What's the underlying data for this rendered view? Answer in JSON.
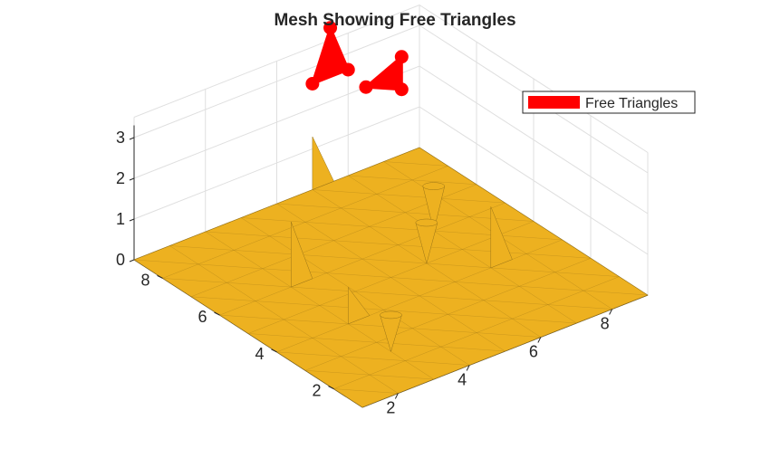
{
  "chart_data": {
    "type": "surface-3d",
    "title": "Mesh Showing Free Triangles",
    "xlabel": "",
    "ylabel": "",
    "zlabel": "",
    "xlim": [
      1,
      9
    ],
    "ylim": [
      1,
      9
    ],
    "zlim": [
      0,
      3
    ],
    "x_ticks": [
      2,
      4,
      6,
      8
    ],
    "y_ticks": [
      2,
      4,
      6,
      8
    ],
    "z_ticks": [
      0,
      1,
      2,
      3
    ],
    "grid": true,
    "legend": {
      "position": "top-right",
      "entries": [
        "Free Triangles"
      ]
    },
    "mesh": {
      "grid_size": 9,
      "z": 0
    },
    "spikes": [
      {
        "x": 3,
        "y": 6,
        "z": 1.6
      },
      {
        "x": 6,
        "y": 9,
        "z": 1.3
      },
      {
        "x": 7,
        "y": 4,
        "z": 1.5
      },
      {
        "x": 3,
        "y": 4,
        "z": 0.9
      }
    ],
    "cones": [
      {
        "x": 7,
        "y": 6,
        "z": 1.1
      },
      {
        "x": 6,
        "y": 5,
        "z": 1.0
      },
      {
        "x": 3,
        "y": 2.5,
        "z": 0.9
      }
    ],
    "free_triangles": [
      {
        "x": [
          7.5,
          8.5,
          8.5
        ],
        "y": [
          9.0,
          9.0,
          9.0
        ],
        "z": [
          2.0,
          1.6,
          2.4
        ]
      },
      {
        "x": [
          6.0,
          7.0,
          6.5
        ],
        "y": [
          9.0,
          9.0,
          9.0
        ],
        "z": [
          2.6,
          2.6,
          3.8
        ]
      }
    ]
  },
  "colors": {
    "surface": "#EDB120",
    "surface_edge": "#9a7416",
    "free_triangles": "#FF0000",
    "grid": "#dfdfdf",
    "axis": "#262626"
  }
}
